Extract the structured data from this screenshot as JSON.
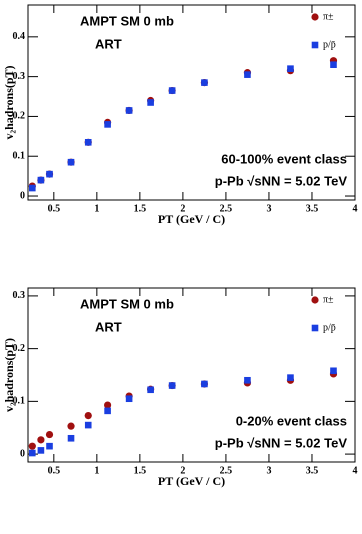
{
  "chart_data": [
    {
      "type": "scatter",
      "labels": [
        "AMPT SM 0 mb",
        "ART"
      ],
      "annotations": [
        "60-100% event class",
        "p-Pb √sNN = 5.02 TeV"
      ],
      "x_label": "PT (GeV / C)",
      "y_label": "v₂hadrons(pT)",
      "x": [
        0.25,
        0.35,
        0.45,
        0.7,
        0.9,
        1.125,
        1.375,
        1.625,
        1.875,
        2.25,
        2.75,
        3.25,
        3.75
      ],
      "series": [
        {
          "name": "π±",
          "color": "#a01010",
          "marker": "circle",
          "values": [
            0.025,
            0.04,
            0.055,
            0.085,
            0.135,
            0.185,
            0.215,
            0.24,
            0.265,
            0.285,
            0.31,
            0.315,
            0.34
          ]
        },
        {
          "name": "p/p̄",
          "color": "#1a3ee0",
          "marker": "square",
          "values": [
            0.02,
            0.04,
            0.055,
            0.085,
            0.135,
            0.18,
            0.215,
            0.235,
            0.265,
            0.285,
            0.305,
            0.32,
            0.33
          ]
        }
      ],
      "xlim": [
        0.2,
        4
      ],
      "xticks": [
        0.5,
        1,
        1.5,
        2,
        2.5,
        3,
        3.5,
        4
      ],
      "ylim": [
        -0.01,
        0.48
      ],
      "yticks": [
        0,
        0.1,
        0.2,
        0.3,
        0.4
      ]
    },
    {
      "type": "scatter",
      "labels": [
        "AMPT SM 0 mb",
        "ART"
      ],
      "annotations": [
        "0-20% event class",
        "p-Pb √sNN = 5.02 TeV"
      ],
      "x_label": "PT (GeV / C)",
      "y_label": "v₂hadrons(pT)",
      "x": [
        0.25,
        0.35,
        0.45,
        0.7,
        0.9,
        1.125,
        1.375,
        1.625,
        1.875,
        2.25,
        2.75,
        3.25,
        3.75
      ],
      "series": [
        {
          "name": "π±",
          "color": "#a01010",
          "marker": "circle",
          "values": [
            0.015,
            0.027,
            0.037,
            0.053,
            0.073,
            0.093,
            0.11,
            0.123,
            0.13,
            0.133,
            0.135,
            0.14,
            0.152
          ]
        },
        {
          "name": "p/p̄",
          "color": "#1a3ee0",
          "marker": "square",
          "values": [
            0.002,
            0.007,
            0.015,
            0.03,
            0.055,
            0.082,
            0.105,
            0.122,
            0.13,
            0.133,
            0.14,
            0.145,
            0.158
          ]
        }
      ],
      "xlim": [
        0.2,
        4
      ],
      "xticks": [
        0.5,
        1,
        1.5,
        2,
        2.5,
        3,
        3.5,
        4
      ],
      "ylim": [
        -0.015,
        0.315
      ],
      "yticks": [
        0,
        0.1,
        0.2,
        0.3
      ]
    }
  ]
}
